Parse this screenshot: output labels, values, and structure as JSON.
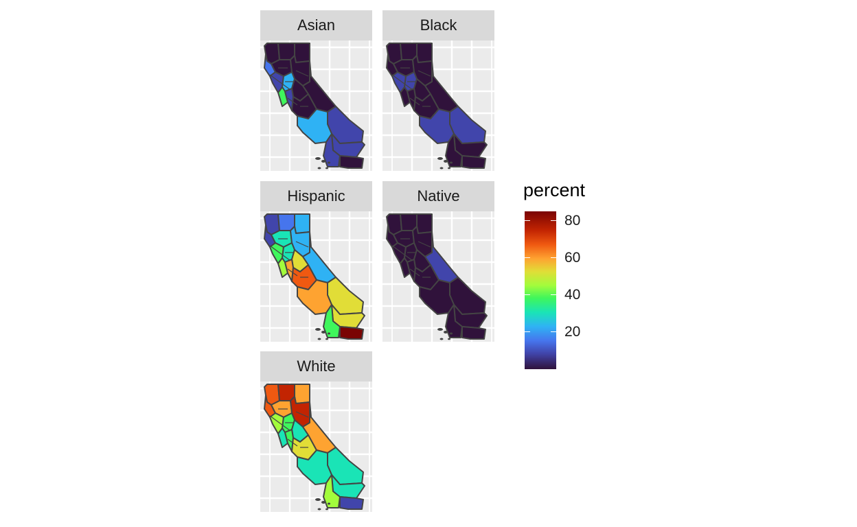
{
  "facets": [
    {
      "label": "Asian",
      "id": "asian",
      "colors": {
        "n1": "#30123b",
        "n2": "#30123b",
        "n3": "#30123b",
        "n4": "#4675ed",
        "n5": "#30123b",
        "n6": "#30123b",
        "bay1": "#4145ab",
        "bay2": "#2fb2f4",
        "bay3": "#3ff65c",
        "cv1": "#30123b",
        "cv2": "#4145ab",
        "cv3": "#30123b",
        "east": "#30123b",
        "sb": "#4145ab",
        "la": "#2fb2f4",
        "ri": "#4145ab",
        "imp": "#30123b",
        "sd": "#4145ab"
      }
    },
    {
      "label": "Black",
      "id": "black",
      "colors": {
        "n1": "#30123b",
        "n2": "#30123b",
        "n3": "#30123b",
        "n4": "#30123b",
        "n5": "#30123b",
        "n6": "#30123b",
        "bay1": "#4145ab",
        "bay2": "#4145ab",
        "bay3": "#30123b",
        "cv1": "#30123b",
        "cv2": "#30123b",
        "cv3": "#30123b",
        "east": "#30123b",
        "sb": "#4145ab",
        "la": "#4145ab",
        "ri": "#30123b",
        "imp": "#30123b",
        "sd": "#30123b"
      }
    },
    {
      "label": "Hispanic",
      "id": "hispanic",
      "colors": {
        "n1": "#4145ab",
        "n2": "#4675ed",
        "n3": "#2fb2f4",
        "n4": "#4145ab",
        "n5": "#1ae4b6",
        "n6": "#2fb2f4",
        "bay1": "#3ff65c",
        "bay2": "#1ae4b6",
        "bay3": "#a2fc3c",
        "cv1": "#e1dd37",
        "cv2": "#fea331",
        "cv3": "#ef5911",
        "east": "#2fb2f4",
        "sb": "#e1dd37",
        "la": "#fea331",
        "ri": "#e1dd37",
        "imp": "#7a0403",
        "sd": "#3ff65c"
      }
    },
    {
      "label": "Native",
      "id": "native",
      "colors": {
        "n1": "#30123b",
        "n2": "#30123b",
        "n3": "#30123b",
        "n4": "#30123b",
        "n5": "#30123b",
        "n6": "#30123b",
        "bay1": "#30123b",
        "bay2": "#30123b",
        "bay3": "#30123b",
        "cv1": "#30123b",
        "cv2": "#30123b",
        "cv3": "#30123b",
        "east": "#4145ab",
        "sb": "#30123b",
        "la": "#30123b",
        "ri": "#30123b",
        "imp": "#30123b",
        "sd": "#30123b"
      }
    },
    {
      "label": "White",
      "id": "white",
      "colors": {
        "n1": "#ef5911",
        "n2": "#c22402",
        "n3": "#fea331",
        "n4": "#ef5911",
        "n5": "#fea331",
        "n6": "#c22402",
        "bay1": "#a2fc3c",
        "bay2": "#3ff65c",
        "bay3": "#1ae4b6",
        "cv1": "#1ae4b6",
        "cv2": "#3ff65c",
        "cv3": "#e1dd37",
        "east": "#fea331",
        "sb": "#1ae4b6",
        "la": "#1ae4b6",
        "ri": "#1ae4b6",
        "imp": "#4145ab",
        "sd": "#a2fc3c"
      }
    }
  ],
  "legend": {
    "title": "percent",
    "range": [
      0,
      85
    ],
    "ticks": [
      20,
      40,
      60,
      80
    ],
    "palette": [
      "#30123b",
      "#4145ab",
      "#4675ed",
      "#2fb2f4",
      "#1ae4b6",
      "#3ff65c",
      "#a2fc3c",
      "#e1dd37",
      "#fea331",
      "#ef5911",
      "#c22402",
      "#7a0403"
    ]
  }
}
